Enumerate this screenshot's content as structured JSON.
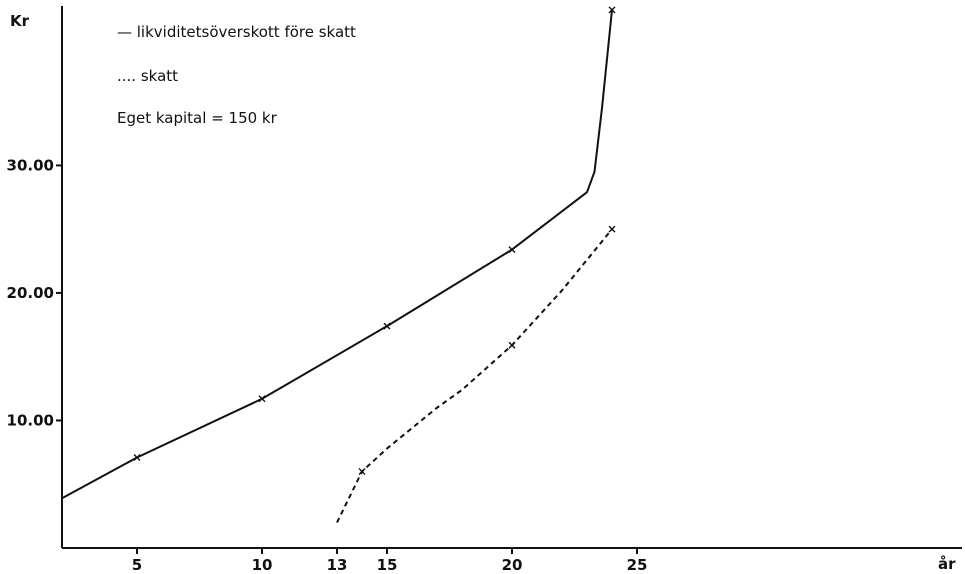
{
  "chart_data": {
    "type": "line",
    "xlabel": "år",
    "ylabel": "Kr",
    "xlim": [
      2,
      38
    ],
    "ylim": [
      0,
      42.5
    ],
    "xticks": [
      5,
      10,
      13,
      15,
      20,
      25
    ],
    "yticks": [
      10,
      20,
      30
    ],
    "xtick_labels": [
      "5",
      "10",
      "13",
      "15",
      "20",
      "25"
    ],
    "ytick_labels": [
      "10.00",
      "20.00",
      "30.00"
    ],
    "grid": false,
    "legend_position": "top-left",
    "legend": [
      "— likviditetsöverskott före skatt",
      ".... skatt"
    ],
    "annotation": "Eget kapital = 150 kr",
    "series": [
      {
        "name": "likviditetsöverskott före skatt",
        "style": "solid",
        "color": "#111111",
        "x": [
          2,
          5,
          10,
          15,
          20,
          23,
          23.3,
          23.6,
          24
        ],
        "y": [
          3.9,
          7.1,
          11.7,
          17.4,
          23.4,
          27.9,
          29.5,
          34.5,
          42.2
        ],
        "markers_at": [
          5,
          10,
          15,
          20,
          24
        ]
      },
      {
        "name": "skatt",
        "style": "dashed",
        "color": "#111111",
        "x": [
          13,
          14,
          15,
          17,
          18,
          20,
          22,
          24
        ],
        "y": [
          2.0,
          6.0,
          7.8,
          11.0,
          12.4,
          15.9,
          20.2,
          25.0
        ],
        "markers_at": [
          14,
          20,
          24
        ]
      }
    ]
  }
}
